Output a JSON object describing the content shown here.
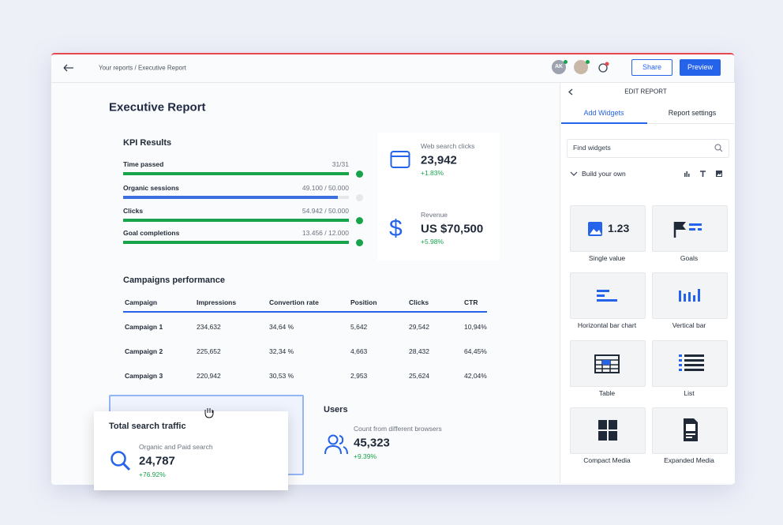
{
  "header": {
    "breadcrumb": "Your reports / Executive Report",
    "avatar": "AK",
    "share": "Share",
    "preview": "Preview"
  },
  "report": {
    "title": "Executive Report",
    "kpi": {
      "title": "KPI Results",
      "rows": [
        {
          "label": "Time passed",
          "value": "31/31"
        },
        {
          "label": "Organic sessions",
          "value": "49.100 / 50.000"
        },
        {
          "label": "Clicks",
          "value": "54.942 / 50.000"
        },
        {
          "label": "Goal completions",
          "value": "13.456 / 12.000"
        }
      ]
    },
    "stats": [
      {
        "label": "Web search clicks",
        "value": "23,942",
        "change": "+1.83%"
      },
      {
        "label": "Revenue",
        "value": "US $70,500",
        "change": "+5.98%"
      }
    ],
    "campaigns": {
      "title": "Campaigns performance",
      "columns": [
        "Campaign",
        "Impressions",
        "Convertion rate",
        "Position",
        "Clicks",
        "CTR"
      ],
      "rows": [
        [
          "Campaign 1",
          "234,632",
          "34,64 %",
          "5,642",
          "29,542",
          "10,94%"
        ],
        [
          "Campaign 2",
          "225,652",
          "32,34 %",
          "4,663",
          "28,432",
          "64,45%"
        ],
        [
          "Campaign 3",
          "220,942",
          "30,53 %",
          "2,953",
          "25,624",
          "42,04%"
        ]
      ]
    },
    "search": {
      "title": "Total search traffic",
      "label": "Organic and Paid search",
      "value": "24,787",
      "change": "+76.92%"
    },
    "users": {
      "title": "Users",
      "label": "Count from different browsers",
      "value": "45,323",
      "change": "+9.39%"
    }
  },
  "sidebar": {
    "title": "EDIT REPORT",
    "tabs": [
      "Add Widgets",
      "Report settings"
    ],
    "search": "Find widgets",
    "section": "Build your own",
    "sample_value": "1.23",
    "widgets": [
      "Single value",
      "Goals",
      "Horizontal bar chart",
      "Vertical bar",
      "Table",
      "List",
      "Compact Media",
      "Expanded Media"
    ]
  }
}
